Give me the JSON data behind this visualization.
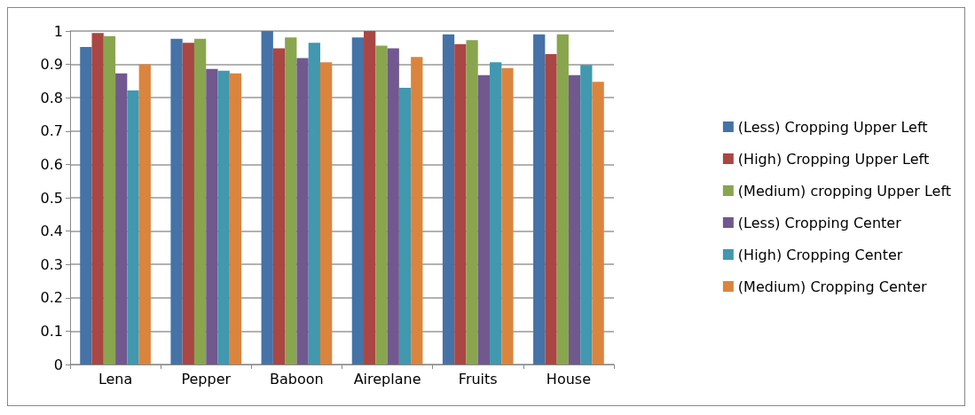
{
  "chart_data": {
    "type": "bar",
    "categories": [
      "Lena",
      "Pepper",
      "Baboon",
      "Aireplane",
      "Fruits",
      "House"
    ],
    "series": [
      {
        "name": "(Less) Cropping Upper Left",
        "color": "#4572a7",
        "values": [
          0.952,
          0.977,
          1.0,
          0.981,
          0.99,
          0.99
        ]
      },
      {
        "name": "(High) Cropping Upper Left",
        "color": "#aa4643",
        "values": [
          0.994,
          0.965,
          0.948,
          1.0,
          0.961,
          0.931
        ]
      },
      {
        "name": "(Medium) cropping Upper Left",
        "color": "#89a54e",
        "values": [
          0.985,
          0.977,
          0.981,
          0.956,
          0.973,
          0.99
        ]
      },
      {
        "name": "(Less) Cropping Center",
        "color": "#71588f",
        "values": [
          0.873,
          0.886,
          0.919,
          0.948,
          0.868,
          0.868
        ]
      },
      {
        "name": "(High) Cropping Center",
        "color": "#4198af",
        "values": [
          0.822,
          0.881,
          0.965,
          0.83,
          0.906,
          0.898
        ]
      },
      {
        "name": "(Medium) Cropping Center",
        "color": "#db843d",
        "values": [
          0.9,
          0.873,
          0.906,
          0.922,
          0.889,
          0.848
        ]
      }
    ],
    "ylim": [
      0,
      1
    ],
    "yticks": [
      0,
      0.1,
      0.2,
      0.3,
      0.4,
      0.5,
      0.6,
      0.7,
      0.8,
      0.9,
      1
    ],
    "grid": "y",
    "legend": "right"
  }
}
